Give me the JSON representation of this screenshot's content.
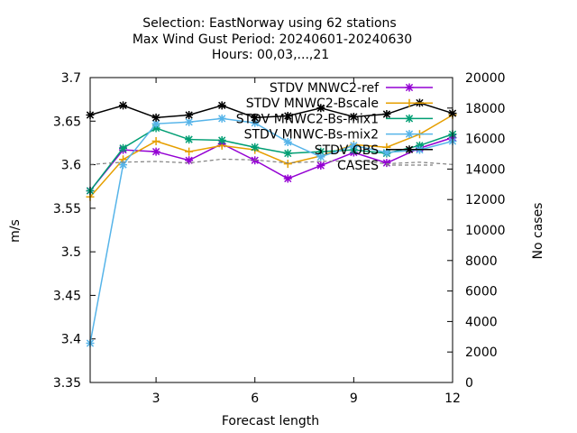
{
  "chart_data": {
    "type": "line",
    "title_lines": [
      "Selection: EastNorway using    62 stations",
      "Max Wind Gust   Period: 20240601-20240630",
      "Hours: 00,03,...,21"
    ],
    "xlabel": "Forecast length",
    "ylabel": "m/s",
    "y2label": "No cases",
    "xlim": [
      1,
      12
    ],
    "ylim": [
      3.35,
      3.7
    ],
    "y2lim": [
      0,
      20000
    ],
    "xticks": [
      3,
      6,
      9,
      12
    ],
    "yticks": [
      3.35,
      3.4,
      3.45,
      3.5,
      3.55,
      3.6,
      3.65,
      3.7
    ],
    "y2ticks": [
      0,
      2000,
      4000,
      6000,
      8000,
      10000,
      12000,
      14000,
      16000,
      18000,
      20000
    ],
    "grid": false,
    "legend_position": "top-right",
    "x": [
      1,
      2,
      3,
      4,
      5,
      6,
      7,
      8,
      9,
      10,
      11,
      12
    ],
    "series": [
      {
        "name": "STDV MNWC2-ref",
        "color": "#9400d3",
        "marker": "star",
        "values": [
          3.57,
          3.617,
          3.615,
          3.605,
          3.624,
          3.605,
          3.584,
          3.599,
          3.614,
          3.602,
          3.619,
          3.631
        ]
      },
      {
        "name": "STDV MNWC2-Bscale",
        "color": "#e69f00",
        "marker": "plus",
        "values": [
          3.563,
          3.606,
          3.627,
          3.615,
          3.622,
          3.617,
          3.601,
          3.61,
          3.623,
          3.62,
          3.635,
          3.657
        ]
      },
      {
        "name": "STDV MNWC2-Bs-mix1",
        "color": "#009e73",
        "marker": "star",
        "values": [
          3.57,
          3.619,
          3.642,
          3.629,
          3.628,
          3.62,
          3.613,
          3.615,
          3.617,
          3.613,
          3.622,
          3.635
        ]
      },
      {
        "name": "STDV MNWC-Bs-mix2",
        "color": "#56b4e9",
        "marker": "star",
        "values": [
          3.395,
          3.6,
          3.647,
          3.649,
          3.653,
          3.648,
          3.626,
          3.609,
          3.622,
          3.614,
          3.617,
          3.627
        ]
      },
      {
        "name": "STDV OBS",
        "color": "#000000",
        "marker": "star",
        "values": [
          3.657,
          3.668,
          3.654,
          3.657,
          3.668,
          3.654,
          3.656,
          3.665,
          3.655,
          3.658,
          3.671,
          3.659
        ]
      },
      {
        "name": "CASES",
        "color": "#808080",
        "dashed": true,
        "axis": "y2",
        "values": [
          14300,
          14450,
          14500,
          14400,
          14650,
          14600,
          14400,
          14500,
          14550,
          14350,
          14450,
          14300
        ]
      }
    ]
  }
}
